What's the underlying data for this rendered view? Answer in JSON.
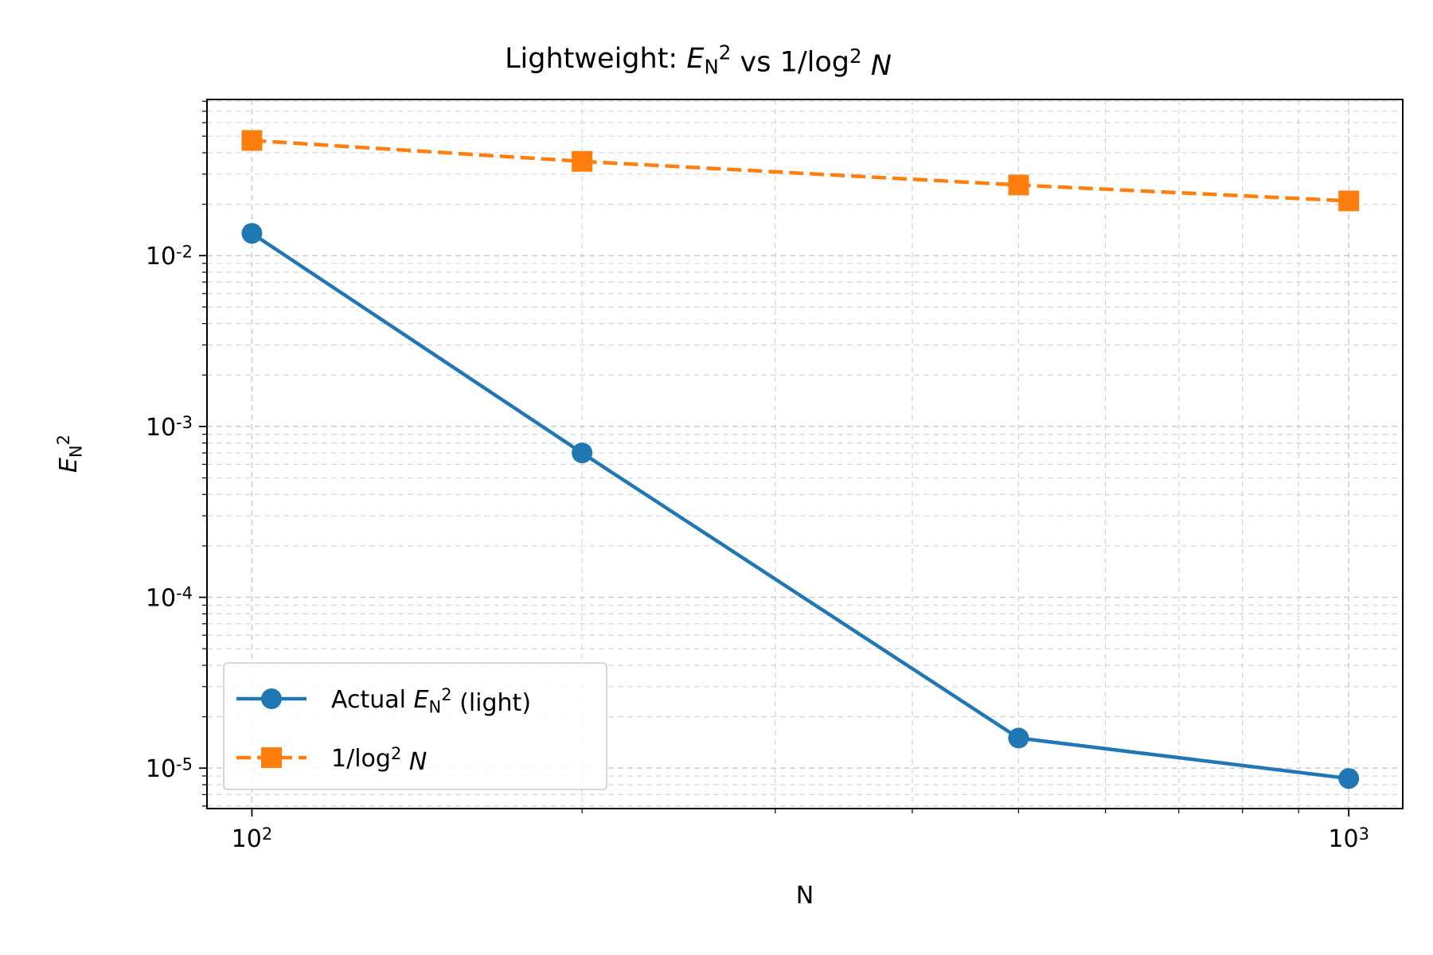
{
  "chart_data": {
    "type": "line",
    "title": "Lightweight: E_N^2 vs 1/log^2 N",
    "xlabel": "N",
    "ylabel": "E_N^2",
    "xscale": "log",
    "yscale": "log",
    "xlim": [
      91,
      1120
    ],
    "ylim": [
      5.8e-06,
      0.082
    ],
    "x_ticks": [
      100,
      1000
    ],
    "x_tick_labels": [
      "10^2",
      "10^3"
    ],
    "y_ticks": [
      1e-05,
      0.0001,
      0.001,
      0.01
    ],
    "y_tick_labels": [
      "10^-5",
      "10^-4",
      "10^-3",
      "10^-2"
    ],
    "grid": true,
    "legend_position": "lower-left",
    "series": [
      {
        "name": "Actual E_N^2 (light)",
        "color": "#1f77b4",
        "marker": "circle",
        "linestyle": "solid",
        "x": [
          100,
          200,
          500,
          1000
        ],
        "y": [
          0.0135,
          0.0007,
          1.5e-05,
          8.7e-06
        ]
      },
      {
        "name": "1/log^2 N",
        "color": "#ff7f0e",
        "marker": "square",
        "linestyle": "dashed",
        "x": [
          100,
          200,
          500,
          1000
        ],
        "y": [
          0.0472,
          0.0356,
          0.0259,
          0.0209
        ]
      }
    ]
  }
}
